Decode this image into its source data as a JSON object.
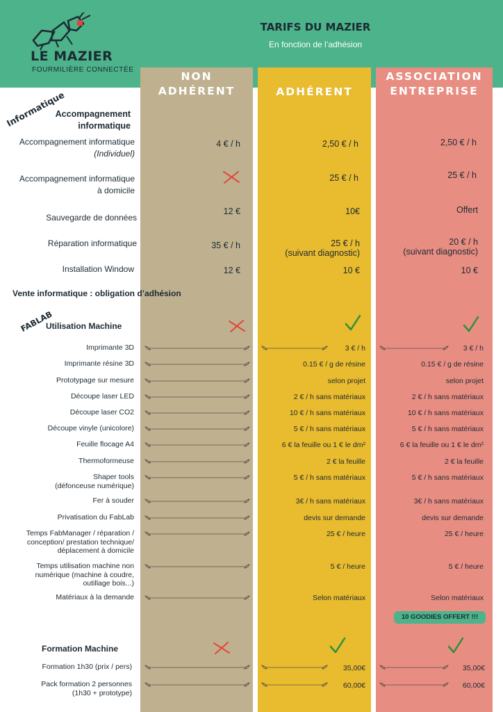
{
  "header": {
    "brand": "LE MAZIER",
    "brand_sub": "FOURMILIÈRE CONNECTÉE",
    "title": "TARIFS DU MAZIER",
    "subtitle": "En fonction de l’adhésion"
  },
  "columns": {
    "non_line1": "NON",
    "non_line2": "ADHÉRENT",
    "adh": "ADHÉRENT",
    "asso_line1": "ASSOCIATION",
    "asso_line2": "ENTREPRISE"
  },
  "sections": {
    "info": "Informatique",
    "info_group": "Accompagnement",
    "info_group2": "informatique",
    "vente": "Vente informatique : obligation d’adhésion",
    "fablab": "FABLAB",
    "machine": "Utilisation Machine",
    "formation": "Formation Machine"
  },
  "info_rows": [
    {
      "label1": "Accompagnement informatique",
      "label2": "(Individuel)",
      "non": "4 € / h",
      "adh": "2,50 € / h",
      "asso": "2,50 € / h"
    },
    {
      "label1": "Accompagnement informatique",
      "label2": "à domicile",
      "adh": "25 € / h",
      "asso": "25 € / h"
    },
    {
      "label1": "Sauvegarde de données",
      "non": "12 €",
      "adh": "10€",
      "asso": "Offert"
    },
    {
      "label1": "Réparation informatique",
      "non": "35 € / h",
      "adh": "25 € / h",
      "adh_note": "(suivant diagnostic)",
      "asso": "20 € / h",
      "asso_note": "(suivant diagnostic)"
    },
    {
      "label1": "Installation Window",
      "non": "12 €",
      "adh": "10 €",
      "asso": "10 €"
    }
  ],
  "fab_rows": [
    {
      "label": "Imprimante 3D",
      "adh": "3 € / h",
      "asso": "3 € / h"
    },
    {
      "label": "Imprimante résine 3D",
      "adh": "0.15 € / g de résine",
      "asso": "0.15 € / g de résine"
    },
    {
      "label": "Prototypage sur mesure",
      "adh": "selon projet",
      "asso": "selon projet"
    },
    {
      "label": "Découpe laser LED",
      "adh": "2 € / h sans matériaux",
      "asso": "2 € / h sans matériaux"
    },
    {
      "label": "Découpe laser CO2",
      "adh": "10 € / h sans matériaux",
      "asso": "10 € / h sans matériaux"
    },
    {
      "label": "Découpe vinyle (unicolore)",
      "adh": "5 € / h sans matériaux",
      "asso": "5 € / h sans matériaux"
    },
    {
      "label": "Feuille flocage A4",
      "adh": "6 € la feuille ou 1 € le dm²",
      "asso": "6 € la feuille ou 1 € le dm²"
    },
    {
      "label": "Thermoformeuse",
      "adh": "2 € la feuille",
      "asso": "2 € la feuille"
    },
    {
      "label1": "Shaper tools",
      "label2": "(défonceuse numérique)",
      "adh": "5 € / h sans matériaux",
      "asso": "5 € / h sans matériaux"
    },
    {
      "label": "Fer à souder",
      "adh": "3€ / h sans matériaux",
      "asso": "3€ / h sans matériaux"
    },
    {
      "label": "Privatisation du FabLab",
      "adh": "devis sur demande",
      "asso": "devis sur demande"
    },
    {
      "label1": "Temps FabManager / réparation /",
      "label2": "conception/ prestation technique/",
      "label3": "déplacement à domicile",
      "adh": "25  € / heure",
      "asso": "25  € / heure"
    },
    {
      "label1": "Temps utilisation machine non",
      "label2": "numérique (machine à coudre,",
      "label3": "outillage bois...)",
      "adh": "5 € / heure",
      "asso": "5 € / heure"
    },
    {
      "label": "Matériaux à la demande",
      "adh": "Selon matériaux",
      "asso": "Selon matériaux"
    }
  ],
  "goodies": "10 GOODIES OFFERT !!!",
  "formation_rows": [
    {
      "label": "Formation 1h30 (prix / pers)",
      "adh": "35,00€",
      "asso": "35,00€"
    },
    {
      "label1": "Pack formation 2 personnes",
      "label2": "(1h30 + prototype)",
      "adh": "60,00€",
      "asso": "60,00€"
    }
  ],
  "colors": {
    "green": "#4cb38a",
    "beige": "#bfb18f",
    "yellow": "#e9bb2e",
    "salmon": "#e88d82",
    "cross": "#e2463b",
    "check": "#2f8f3a"
  },
  "icons": {
    "cross": "cross-icon",
    "check": "check-icon",
    "logo": "ant-logo",
    "rule": "leaf-rule"
  }
}
